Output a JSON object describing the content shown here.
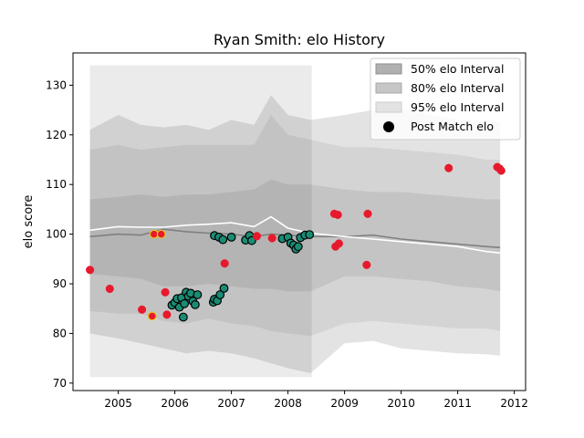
{
  "chart_data": {
    "type": "scatter",
    "title": "Ryan Smith: elo History",
    "xlabel": "",
    "ylabel": "elo score",
    "xlim": [
      2004.2,
      2012.2
    ],
    "ylim": [
      68.5,
      136.5
    ],
    "xticks": [
      2005,
      2006,
      2007,
      2008,
      2009,
      2010,
      2011,
      2012
    ],
    "xtick_labels": [
      "2005",
      "2006",
      "2007",
      "2008",
      "2009",
      "2010",
      "2011",
      "2012"
    ],
    "yticks": [
      70,
      80,
      90,
      100,
      110,
      120,
      130
    ],
    "ytick_labels": [
      "70",
      "80",
      "90",
      "100",
      "110",
      "120",
      "130"
    ],
    "legend": {
      "position": "top-right",
      "entries": [
        {
          "label": "50% elo Interval",
          "color": "#b0b0b0"
        },
        {
          "label": "80% elo Interval",
          "color": "#c6c6c6"
        },
        {
          "label": "95% elo Interval",
          "color": "#e3e3e3"
        },
        {
          "label": "Post Match elo",
          "color": "#000000"
        }
      ]
    },
    "colors": {
      "band95": "#e3e3e3",
      "band80": "#cfcfcf",
      "band50": "#bdbdbd",
      "mean": "#808080",
      "median": "#ffffff",
      "win": "#1a8c74",
      "loss": "#e8192c",
      "draw": "#e8c21a"
    },
    "bands": {
      "x": [
        2004.5,
        2005.0,
        2005.4,
        2005.8,
        2006.2,
        2006.6,
        2007.0,
        2007.4,
        2007.7,
        2008.0,
        2008.4,
        2009.0,
        2009.5,
        2010.0,
        2010.5,
        2011.0,
        2011.5,
        2011.75
      ],
      "lo95": [
        80,
        79,
        78,
        77,
        76,
        76.5,
        76,
        75,
        74,
        73,
        72,
        78,
        78.5,
        77,
        76.5,
        76,
        75.8,
        75.5
      ],
      "hi95": [
        121,
        124,
        122,
        121.5,
        122,
        121,
        123,
        122,
        128,
        124,
        123,
        124,
        125,
        125.5,
        124,
        123,
        122.5,
        122.5
      ],
      "lo80": [
        84.5,
        84,
        84,
        82.5,
        82,
        83,
        82,
        81.5,
        80.5,
        80,
        79.5,
        82,
        82.5,
        82,
        81.5,
        81,
        81,
        80.5
      ],
      "hi80": [
        117,
        118,
        117,
        117.5,
        118,
        118,
        118,
        118,
        124,
        120,
        119,
        117.5,
        117.5,
        117,
        116.5,
        116,
        115,
        115
      ],
      "lo50": [
        92,
        91.5,
        91,
        89.5,
        89.5,
        90,
        89.5,
        89,
        89,
        88.5,
        88.5,
        91.5,
        91.5,
        91,
        90.5,
        89.5,
        89,
        88.5
      ],
      "hi50": [
        107,
        107.5,
        108,
        107.5,
        108,
        108,
        108.5,
        109,
        111,
        110,
        110,
        109,
        108.5,
        108.5,
        108,
        107.5,
        107,
        107
      ],
      "mean": [
        99.5,
        100,
        99.8,
        101,
        100.5,
        100.2,
        100,
        99.5,
        100,
        99.8,
        99.5,
        99.5,
        99.8,
        99,
        98.5,
        98,
        97.5,
        97.3
      ],
      "median": [
        100.8,
        101.5,
        101.4,
        101.4,
        101.8,
        102,
        102.3,
        101.5,
        103.5,
        101.2,
        100.2,
        99.5,
        99,
        98.5,
        98,
        97.5,
        96.5,
        96.2
      ]
    },
    "dark_region": {
      "x_start": 2004.5,
      "x_end": 2008.42,
      "y_low": 71.2,
      "y_high": 134
    },
    "points": [
      {
        "x": 2004.5,
        "y": 92.8,
        "result": "loss"
      },
      {
        "x": 2004.85,
        "y": 89.0,
        "result": "loss"
      },
      {
        "x": 2005.42,
        "y": 84.8,
        "result": "loss"
      },
      {
        "x": 2005.6,
        "y": 83.5,
        "result": "draw"
      },
      {
        "x": 2005.63,
        "y": 100.0,
        "result": "draw"
      },
      {
        "x": 2005.76,
        "y": 100.0,
        "result": "draw"
      },
      {
        "x": 2005.83,
        "y": 88.3,
        "result": "loss"
      },
      {
        "x": 2005.86,
        "y": 83.8,
        "result": "loss"
      },
      {
        "x": 2005.95,
        "y": 85.7,
        "result": "win"
      },
      {
        "x": 2006.0,
        "y": 86.2,
        "result": "win"
      },
      {
        "x": 2006.04,
        "y": 87.0,
        "result": "win"
      },
      {
        "x": 2006.08,
        "y": 85.3,
        "result": "win"
      },
      {
        "x": 2006.12,
        "y": 87.2,
        "result": "win"
      },
      {
        "x": 2006.15,
        "y": 83.3,
        "result": "win"
      },
      {
        "x": 2006.17,
        "y": 86.0,
        "result": "win"
      },
      {
        "x": 2006.2,
        "y": 88.3,
        "result": "win"
      },
      {
        "x": 2006.24,
        "y": 87.5,
        "result": "win"
      },
      {
        "x": 2006.28,
        "y": 88.1,
        "result": "win"
      },
      {
        "x": 2006.32,
        "y": 86.5,
        "result": "win"
      },
      {
        "x": 2006.36,
        "y": 85.8,
        "result": "win"
      },
      {
        "x": 2006.4,
        "y": 87.8,
        "result": "win"
      },
      {
        "x": 2006.68,
        "y": 86.3,
        "result": "win"
      },
      {
        "x": 2006.7,
        "y": 86.9,
        "result": "win"
      },
      {
        "x": 2006.75,
        "y": 86.6,
        "result": "win"
      },
      {
        "x": 2006.8,
        "y": 87.8,
        "result": "win"
      },
      {
        "x": 2006.87,
        "y": 89.1,
        "result": "win"
      },
      {
        "x": 2006.88,
        "y": 94.1,
        "result": "loss"
      },
      {
        "x": 2006.7,
        "y": 99.7,
        "result": "win"
      },
      {
        "x": 2006.78,
        "y": 99.4,
        "result": "win"
      },
      {
        "x": 2006.85,
        "y": 98.9,
        "result": "win"
      },
      {
        "x": 2007.0,
        "y": 99.4,
        "result": "win"
      },
      {
        "x": 2007.25,
        "y": 98.8,
        "result": "win"
      },
      {
        "x": 2007.32,
        "y": 99.7,
        "result": "win"
      },
      {
        "x": 2007.36,
        "y": 98.7,
        "result": "win"
      },
      {
        "x": 2007.45,
        "y": 99.6,
        "result": "loss"
      },
      {
        "x": 2007.72,
        "y": 99.2,
        "result": "loss"
      },
      {
        "x": 2007.9,
        "y": 99.1,
        "result": "win"
      },
      {
        "x": 2008.0,
        "y": 99.4,
        "result": "win"
      },
      {
        "x": 2008.05,
        "y": 98.2,
        "result": "win"
      },
      {
        "x": 2008.1,
        "y": 97.8,
        "result": "win"
      },
      {
        "x": 2008.14,
        "y": 97.0,
        "result": "win"
      },
      {
        "x": 2008.18,
        "y": 97.5,
        "result": "win"
      },
      {
        "x": 2008.22,
        "y": 99.3,
        "result": "win"
      },
      {
        "x": 2008.3,
        "y": 99.8,
        "result": "win"
      },
      {
        "x": 2008.38,
        "y": 99.9,
        "result": "win"
      },
      {
        "x": 2008.82,
        "y": 104.1,
        "result": "loss"
      },
      {
        "x": 2008.88,
        "y": 103.9,
        "result": "loss"
      },
      {
        "x": 2008.84,
        "y": 97.5,
        "result": "loss"
      },
      {
        "x": 2008.9,
        "y": 98.1,
        "result": "loss"
      },
      {
        "x": 2009.39,
        "y": 93.8,
        "result": "loss"
      },
      {
        "x": 2009.41,
        "y": 104.1,
        "result": "loss"
      },
      {
        "x": 2010.84,
        "y": 113.3,
        "result": "loss"
      },
      {
        "x": 2011.7,
        "y": 113.5,
        "result": "loss"
      },
      {
        "x": 2011.74,
        "y": 113.2,
        "result": "loss"
      },
      {
        "x": 2011.77,
        "y": 112.8,
        "result": "loss"
      }
    ]
  }
}
